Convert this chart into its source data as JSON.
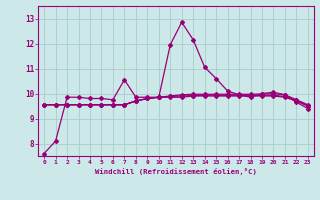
{
  "xlabel": "Windchill (Refroidissement éolien,°C)",
  "bg_color": "#cce8e8",
  "grid_color": "#aacccc",
  "line_color": "#990077",
  "x_values": [
    0,
    1,
    2,
    3,
    4,
    5,
    6,
    7,
    8,
    9,
    10,
    11,
    12,
    13,
    14,
    15,
    16,
    17,
    18,
    19,
    20,
    21,
    22,
    23
  ],
  "series1": [
    7.6,
    8.1,
    9.85,
    9.85,
    9.8,
    9.8,
    9.75,
    10.55,
    9.85,
    9.85,
    9.85,
    11.95,
    12.85,
    12.15,
    11.05,
    10.6,
    10.1,
    9.95,
    9.85,
    10.0,
    10.05,
    9.95,
    9.65,
    9.4
  ],
  "series2": [
    9.55,
    9.55,
    9.55,
    9.55,
    9.55,
    9.55,
    9.55,
    9.55,
    9.7,
    9.8,
    9.85,
    9.85,
    9.85,
    9.9,
    9.9,
    9.9,
    9.9,
    9.9,
    9.9,
    9.9,
    9.9,
    9.85,
    9.7,
    9.5
  ],
  "series3": [
    9.55,
    9.55,
    9.55,
    9.55,
    9.55,
    9.55,
    9.55,
    9.55,
    9.7,
    9.8,
    9.85,
    9.9,
    9.95,
    9.97,
    9.97,
    9.97,
    9.97,
    9.97,
    9.97,
    9.98,
    9.99,
    9.95,
    9.75,
    9.55
  ],
  "series4": [
    9.55,
    9.55,
    9.55,
    9.55,
    9.55,
    9.55,
    9.55,
    9.55,
    9.7,
    9.8,
    9.85,
    9.88,
    9.9,
    9.92,
    9.93,
    9.93,
    9.93,
    9.93,
    9.93,
    9.93,
    9.93,
    9.88,
    9.72,
    9.5
  ],
  "ylim": [
    7.5,
    13.5
  ],
  "yticks": [
    8,
    9,
    10,
    11,
    12,
    13
  ],
  "xtick_labels": [
    "0",
    "1",
    "2",
    "3",
    "4",
    "5",
    "6",
    "7",
    "8",
    "9",
    "10",
    "11",
    "12",
    "13",
    "14",
    "15",
    "16",
    "17",
    "18",
    "19",
    "20",
    "21",
    "22",
    "23"
  ]
}
